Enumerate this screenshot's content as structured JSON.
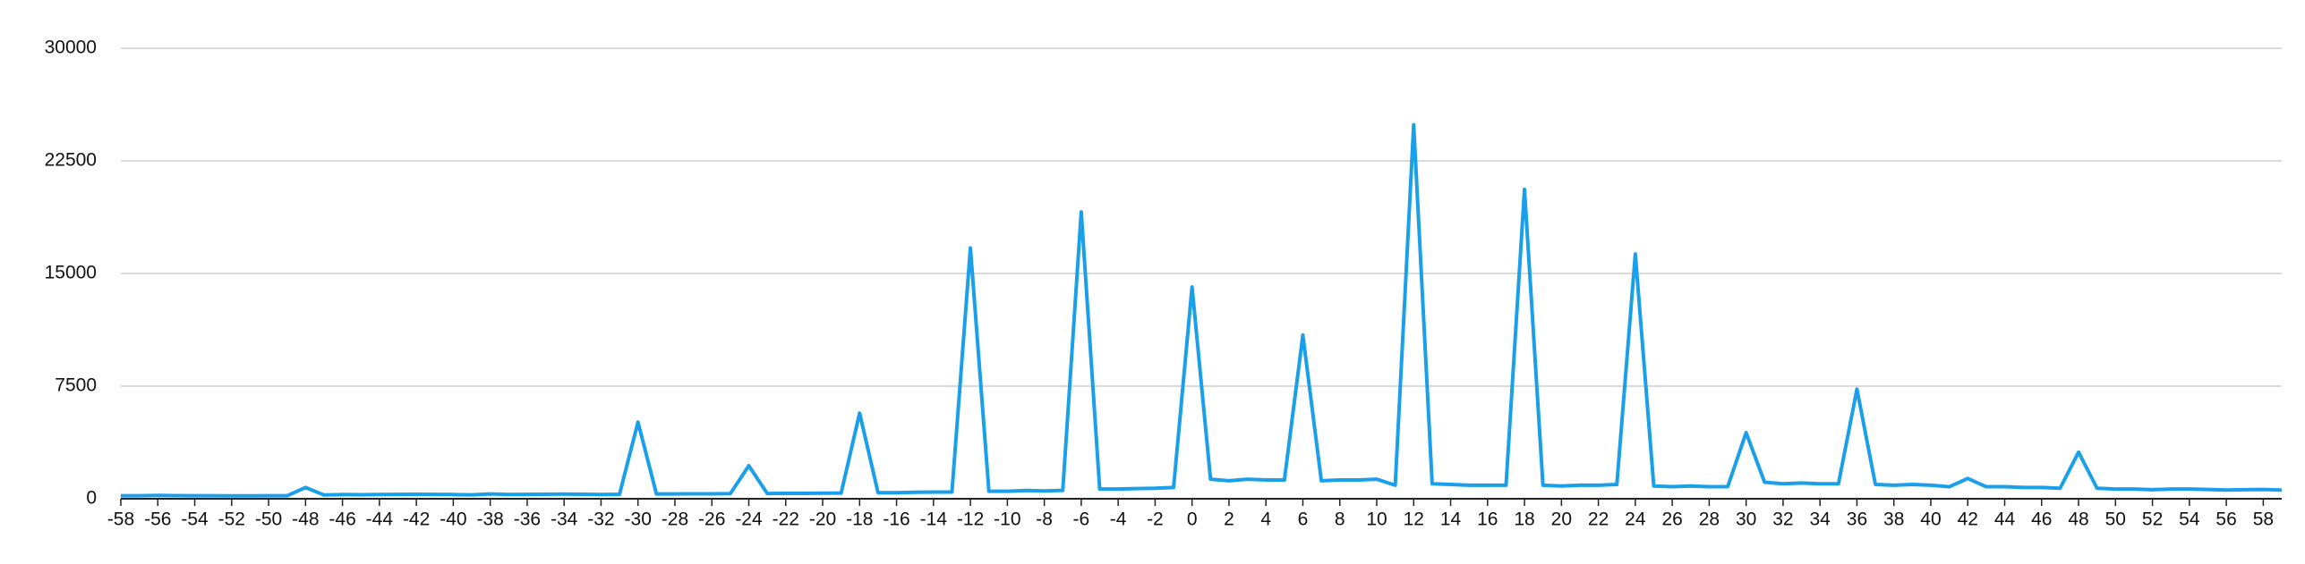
{
  "chart_data": {
    "type": "line",
    "x": [
      -58,
      -57,
      -56,
      -55,
      -54,
      -53,
      -52,
      -51,
      -50,
      -49,
      -48,
      -47,
      -46,
      -45,
      -44,
      -43,
      -42,
      -41,
      -40,
      -39,
      -38,
      -37,
      -36,
      -35,
      -34,
      -33,
      -32,
      -31,
      -30,
      -29,
      -28,
      -27,
      -26,
      -25,
      -24,
      -23,
      -22,
      -21,
      -20,
      -19,
      -18,
      -17,
      -16,
      -15,
      -14,
      -13,
      -12,
      -11,
      -10,
      -9,
      -8,
      -7,
      -6,
      -5,
      -4,
      -3,
      -2,
      -1,
      0,
      1,
      2,
      3,
      4,
      5,
      6,
      7,
      8,
      9,
      10,
      11,
      12,
      13,
      14,
      15,
      16,
      17,
      18,
      19,
      20,
      21,
      22,
      23,
      24,
      25,
      26,
      27,
      28,
      29,
      30,
      31,
      32,
      33,
      34,
      35,
      36,
      37,
      38,
      39,
      40,
      41,
      42,
      43,
      44,
      45,
      46,
      47,
      48,
      49,
      50,
      51,
      52,
      53,
      54,
      55,
      56,
      57,
      58,
      59
    ],
    "values": [
      200,
      200,
      220,
      210,
      200,
      200,
      190,
      190,
      200,
      200,
      750,
      250,
      280,
      270,
      280,
      290,
      300,
      290,
      280,
      260,
      320,
      280,
      290,
      300,
      310,
      300,
      280,
      300,
      5100,
      320,
      320,
      330,
      330,
      340,
      2200,
      350,
      360,
      360,
      370,
      380,
      5700,
      400,
      400,
      430,
      450,
      450,
      16700,
      500,
      500,
      550,
      520,
      560,
      19100,
      650,
      650,
      680,
      700,
      750,
      14100,
      1300,
      1200,
      1300,
      1250,
      1250,
      10900,
      1200,
      1250,
      1250,
      1300,
      900,
      24900,
      1000,
      950,
      900,
      900,
      900,
      20600,
      900,
      850,
      900,
      900,
      950,
      16300,
      850,
      800,
      850,
      800,
      800,
      4400,
      1100,
      1000,
      1050,
      1000,
      1000,
      7300,
      950,
      900,
      950,
      900,
      800,
      1350,
      800,
      800,
      750,
      750,
      700,
      3100,
      700,
      650,
      650,
      600,
      650,
      650,
      620,
      580,
      600,
      620,
      580
    ],
    "color": "#1aa0ea",
    "xlim": [
      -58,
      59
    ],
    "xticks": [
      -58,
      -56,
      -54,
      -52,
      -50,
      -48,
      -46,
      -44,
      -42,
      -40,
      -38,
      -36,
      -34,
      -32,
      -30,
      -28,
      -26,
      -24,
      -22,
      -20,
      -18,
      -16,
      -14,
      -12,
      -10,
      -8,
      -6,
      -4,
      -2,
      0,
      2,
      4,
      6,
      8,
      10,
      12,
      14,
      16,
      18,
      20,
      22,
      24,
      26,
      28,
      30,
      32,
      34,
      36,
      38,
      40,
      42,
      44,
      46,
      48,
      50,
      52,
      54,
      56,
      58
    ],
    "ylim": [
      0,
      30000
    ],
    "yticks": [
      0,
      7500,
      15000,
      22500,
      30000
    ],
    "grid": true
  }
}
